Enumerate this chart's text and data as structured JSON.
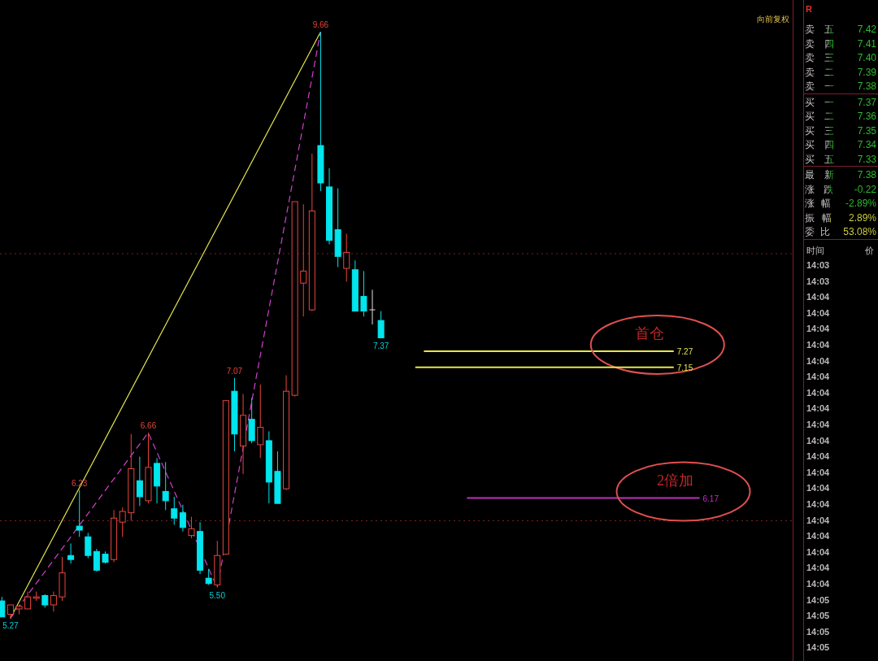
{
  "chart_data": [
    {
      "type": "candlestick",
      "categories": [
        null,
        null,
        null,
        null,
        null,
        null,
        null,
        null,
        null,
        null,
        null,
        null,
        null,
        null,
        null,
        null,
        null,
        null,
        null,
        null,
        null,
        null,
        null,
        null,
        null,
        null,
        null,
        null,
        null,
        null,
        null,
        null,
        null,
        null,
        null,
        null,
        null,
        null,
        null,
        null,
        null,
        null,
        null,
        null,
        null
      ],
      "ohlc": [
        [
          5.4,
          5.43,
          5.28,
          5.28
        ],
        [
          5.3,
          5.37,
          5.27,
          5.37
        ],
        [
          5.34,
          5.37,
          5.3,
          5.36
        ],
        [
          5.34,
          5.47,
          5.34,
          5.43
        ],
        [
          5.42,
          5.47,
          5.4,
          5.43
        ],
        [
          5.44,
          5.45,
          5.35,
          5.37
        ],
        [
          5.37,
          5.47,
          5.32,
          5.44
        ],
        [
          5.43,
          5.73,
          5.4,
          5.61
        ],
        [
          5.74,
          5.83,
          5.68,
          5.71
        ],
        [
          5.96,
          6.23,
          5.88,
          5.93
        ],
        [
          5.88,
          5.91,
          5.72,
          5.74
        ],
        [
          5.77,
          5.79,
          5.62,
          5.63
        ],
        [
          5.75,
          5.77,
          5.68,
          5.69
        ],
        [
          5.71,
          6.08,
          5.69,
          6.02
        ],
        [
          5.99,
          6.1,
          5.88,
          6.07
        ],
        [
          6.06,
          6.65,
          6.0,
          6.39
        ],
        [
          6.3,
          6.48,
          6.11,
          6.18
        ],
        [
          6.15,
          6.66,
          6.13,
          6.4
        ],
        [
          6.43,
          6.47,
          6.13,
          6.26
        ],
        [
          6.22,
          6.44,
          6.08,
          6.15
        ],
        [
          6.09,
          6.18,
          5.97,
          6.02
        ],
        [
          6.06,
          6.12,
          5.92,
          5.95
        ],
        [
          5.89,
          6.03,
          5.87,
          5.94
        ],
        [
          5.92,
          5.99,
          5.6,
          5.63
        ],
        [
          5.57,
          5.64,
          5.52,
          5.53
        ],
        [
          5.52,
          5.85,
          5.5,
          5.74
        ],
        [
          5.75,
          6.9,
          5.75,
          6.9
        ],
        [
          6.97,
          7.07,
          6.52,
          6.65
        ],
        [
          6.56,
          6.95,
          6.35,
          6.79
        ],
        [
          6.76,
          6.92,
          6.58,
          6.6
        ],
        [
          6.57,
          7.02,
          6.47,
          6.7
        ],
        [
          6.6,
          6.67,
          6.13,
          6.29
        ],
        [
          6.37,
          6.52,
          6.13,
          6.13
        ],
        [
          6.24,
          7.09,
          6.23,
          6.97
        ],
        [
          6.94,
          8.39,
          6.93,
          8.39
        ],
        [
          7.78,
          8.37,
          7.53,
          7.87
        ],
        [
          7.58,
          8.75,
          7.57,
          8.32
        ],
        [
          8.81,
          9.66,
          8.47,
          8.53
        ],
        [
          8.5,
          8.64,
          8.07,
          8.1
        ],
        [
          8.18,
          8.49,
          7.9,
          7.98
        ],
        [
          7.89,
          8.15,
          7.79,
          8.01
        ],
        [
          7.88,
          7.95,
          7.57,
          7.57
        ],
        [
          7.68,
          7.87,
          7.53,
          7.57
        ],
        [
          7.58,
          7.73,
          7.47,
          7.58
        ],
        [
          7.5,
          7.57,
          7.37,
          7.37
        ]
      ],
      "colors": [
        "#00e5ee",
        "#e8453c",
        "#e8453c",
        "#e8453c",
        "#e8453c",
        "#00e5ee",
        "#e8453c",
        "#e8453c",
        "#00e5ee",
        "#00e5ee",
        "#00e5ee",
        "#00e5ee",
        "#00e5ee",
        "#e8453c",
        "#e8453c",
        "#e8453c",
        "#00e5ee",
        "#e8453c",
        "#00e5ee",
        "#00e5ee",
        "#00e5ee",
        "#00e5ee",
        "#e8453c",
        "#00e5ee",
        "#00e5ee",
        "#e8453c",
        "#e8453c",
        "#00e5ee",
        "#e8453c",
        "#00e5ee",
        "#e8453c",
        "#00e5ee",
        "#00e5ee",
        "#e8453c",
        "#e8453c",
        "#e8453c",
        "#e8453c",
        "#00e5ee",
        "#00e5ee",
        "#00e5ee",
        "#e8453c",
        "#00e5ee",
        "#00e5ee",
        "#e0e0e0",
        "#00e5ee"
      ],
      "series": [
        {
          "type": "line",
          "color": "#e6e64c",
          "line_style": "solid",
          "values": [
            null,
            5.27,
            null,
            null,
            null,
            null,
            null,
            null,
            null,
            null,
            null,
            null,
            null,
            null,
            null,
            null,
            null,
            null,
            null,
            null,
            null,
            null,
            null,
            null,
            null,
            null,
            null,
            null,
            null,
            null,
            null,
            null,
            null,
            null,
            null,
            null,
            null,
            9.66,
            null,
            null,
            null,
            null,
            null,
            null,
            null
          ]
        },
        {
          "type": "line",
          "color": "#d040d0",
          "line_style": "dashed",
          "values": [
            null,
            5.27,
            null,
            null,
            null,
            null,
            null,
            null,
            null,
            null,
            null,
            null,
            null,
            null,
            null,
            null,
            null,
            6.66,
            null,
            null,
            null,
            null,
            null,
            null,
            null,
            5.5,
            null,
            null,
            null,
            null,
            null,
            null,
            null,
            null,
            null,
            null,
            null,
            9.66,
            null,
            null,
            null,
            null,
            null,
            null,
            null
          ]
        }
      ],
      "ylim": [
        4.95,
        9.9
      ],
      "tick_labels": false,
      "ref_lines": [
        {
          "axis": "y",
          "value": 8,
          "color": "#7a2020",
          "line_style": "dotted"
        },
        {
          "axis": "y",
          "value": 6,
          "color": "#7a2020",
          "line_style": "dotted"
        },
        {
          "axis": "y",
          "value": 7.27,
          "label": "7.27",
          "color": "#e6e64c",
          "line_style": "solid"
        },
        {
          "axis": "y",
          "value": 7.15,
          "label": "7.15",
          "color": "#e6e64c",
          "line_style": "solid"
        },
        {
          "axis": "y",
          "value": 6.17,
          "label": "6.17",
          "color": "#c030c0",
          "line_style": "solid"
        }
      ],
      "annotations": [
        "向前复权",
        {
          "text": "9.66",
          "y": 9.66
        },
        {
          "text": "7.07",
          "y": 7.07
        },
        {
          "text": "6.66",
          "y": 6.66
        },
        {
          "text": "6.23",
          "y": 6.23
        },
        {
          "text": "5.50",
          "y": 5.5
        },
        {
          "text": "5.27",
          "y": 5.27
        },
        {
          "text": "7.37",
          "y": 7.37
        },
        {
          "text": "首仓",
          "y": 7.27
        },
        {
          "text": "2倍加",
          "y": 6.17
        }
      ]
    },
    {
      "type": "other",
      "categories": [
        "卖五",
        "卖四",
        "卖三",
        "卖二",
        "卖一",
        "买一",
        "买二",
        "买三",
        "买四",
        "买五",
        "最新",
        "涨跌",
        "涨幅",
        "振幅",
        "委比"
      ],
      "value_labels": [
        "7.42",
        "7.41",
        "7.40",
        "7.39",
        "7.38",
        "7.37",
        "7.36",
        "7.35",
        "7.34",
        "7.33",
        "7.38",
        "-0.22",
        "-2.89%",
        "2.89%",
        "53.08%"
      ],
      "colors": [
        "#2ec02e",
        "#2ec02e",
        "#2ec02e",
        "#2ec02e",
        "#2ec02e",
        "#2ec02e",
        "#2ec02e",
        "#2ec02e",
        "#2ec02e",
        "#2ec02e",
        "#2ec02e",
        "#2ec02e",
        "#2ec02e",
        "#d8d840",
        "#d8d840"
      ],
      "annotations": [
        "R"
      ]
    },
    {
      "type": "other",
      "categories": [
        "14:03",
        "14:03",
        "14:04",
        "14:04",
        "14:04",
        "14:04",
        "14:04",
        "14:04",
        "14:04",
        "14:04",
        "14:04",
        "14:04",
        "14:04",
        "14:04",
        "14:04",
        "14:04",
        "14:04",
        "14:04",
        "14:04",
        "14:04",
        "14:04",
        "14:05",
        "14:05",
        "14:05",
        "14:05"
      ],
      "annotations": [
        "时间",
        "价"
      ]
    }
  ]
}
